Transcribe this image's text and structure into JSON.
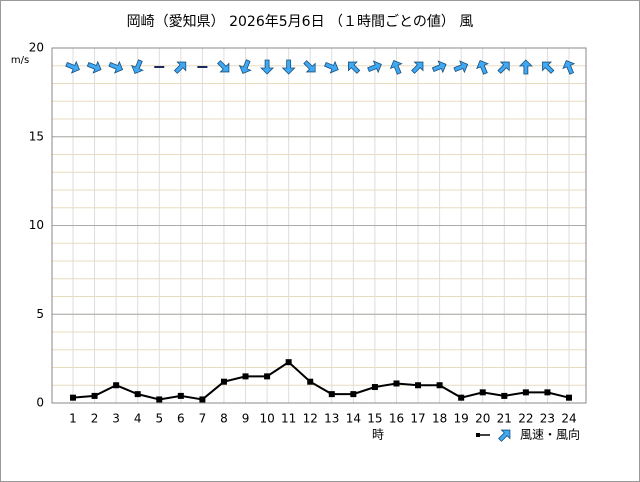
{
  "chart_data": {
    "type": "line",
    "title": "岡崎（愛知県） 2026年5月6日 （１時間ごとの値） 風",
    "y_label": "m/s",
    "x_label": "時",
    "categories": [
      "1",
      "2",
      "3",
      "4",
      "5",
      "6",
      "7",
      "8",
      "9",
      "10",
      "11",
      "12",
      "13",
      "14",
      "15",
      "16",
      "17",
      "18",
      "19",
      "20",
      "21",
      "22",
      "23",
      "24"
    ],
    "series": [
      {
        "name": "風速・風向",
        "color": "#000000",
        "values": [
          0.3,
          0.4,
          1.0,
          0.5,
          0.2,
          0.4,
          0.2,
          1.2,
          1.5,
          1.5,
          2.3,
          1.2,
          0.5,
          0.5,
          0.9,
          1.1,
          1.0,
          1.0,
          0.3,
          0.6,
          0.4,
          0.6,
          0.6,
          0.3
        ],
        "wind_direction_deg": [
          292.5,
          292.5,
          292.5,
          22.5,
          null,
          225,
          null,
          315,
          22.5,
          0,
          0,
          315,
          292.5,
          135,
          247.5,
          157.5,
          225,
          247.5,
          247.5,
          157.5,
          225,
          180,
          135,
          157.5
        ],
        "arrow_color": "#3fa9f5"
      }
    ],
    "ylim": [
      0,
      20
    ],
    "yticks": [
      0,
      5,
      10,
      15,
      20
    ],
    "grid": true
  }
}
